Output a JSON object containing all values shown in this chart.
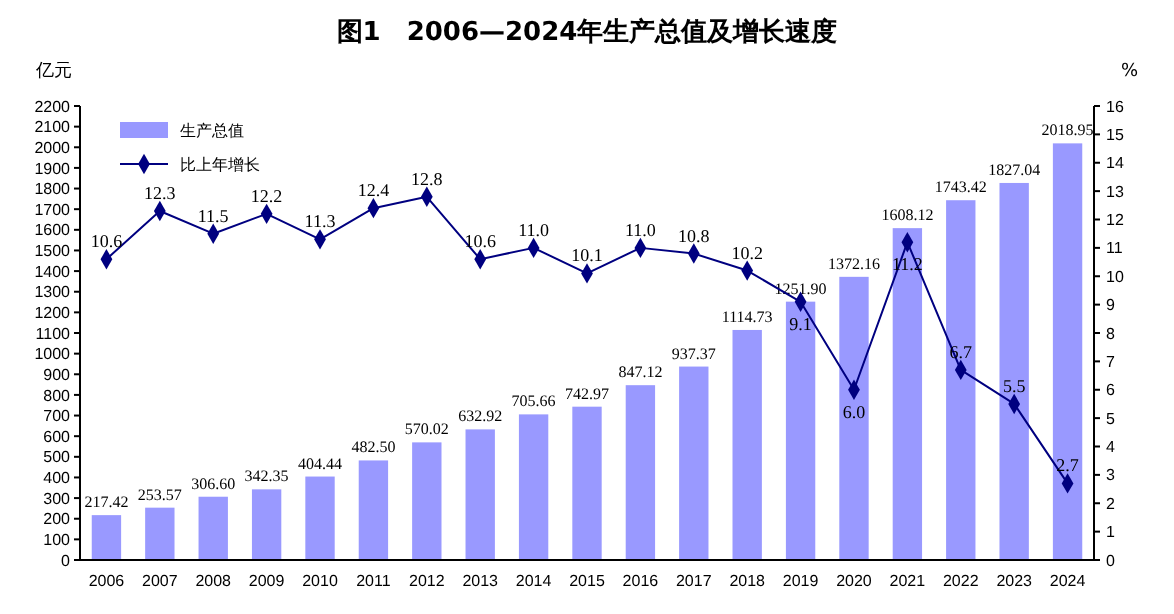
{
  "chart_data": {
    "type": "bar",
    "title": "图1　2006—2024年生产总值及增长速度",
    "ylabel": "亿元",
    "y2label": "%",
    "categories": [
      "2006",
      "2007",
      "2008",
      "2009",
      "2010",
      "2011",
      "2012",
      "2013",
      "2014",
      "2015",
      "2016",
      "2017",
      "2018",
      "2019",
      "2020",
      "2021",
      "2022",
      "2023",
      "2024"
    ],
    "series": [
      {
        "name": "生产总值",
        "color": "#9999ff",
        "values": [
          217.42,
          253.57,
          306.6,
          342.35,
          404.44,
          482.5,
          570.02,
          632.92,
          705.66,
          742.97,
          847.12,
          937.37,
          1114.73,
          1251.9,
          1372.16,
          1608.12,
          1743.42,
          1827.04,
          2018.95
        ],
        "value_labels": [
          "217.42",
          "253.57",
          "306.60",
          "342.35",
          "404.44",
          "482.50",
          "570.02",
          "632.92",
          "705.66",
          "742.97",
          "847.12",
          "937.37",
          "1114.73",
          "1251.90",
          "1372.16",
          "1608.12",
          "1743.42",
          "1827.04",
          "2018.95"
        ]
      },
      {
        "name": "比上年增长",
        "type": "line",
        "axis": "y2",
        "color": "#000080",
        "marker": "diamond",
        "values": [
          10.6,
          12.3,
          11.5,
          12.2,
          11.3,
          12.4,
          12.8,
          10.6,
          11.0,
          10.1,
          11.0,
          10.8,
          10.2,
          9.1,
          6.0,
          11.2,
          6.7,
          5.5,
          2.7
        ],
        "value_labels": [
          "10.6",
          "12.3",
          "11.5",
          "12.2",
          "11.3",
          "12.4",
          "12.8",
          "10.6",
          "11.0",
          "10.1",
          "11.0",
          "10.8",
          "10.2",
          "9.1",
          "6.0",
          "11.2",
          "6.7",
          "5.5",
          "2.7"
        ]
      }
    ],
    "ylim": [
      0,
      2200
    ],
    "yticks": [
      0,
      100,
      200,
      300,
      400,
      500,
      600,
      700,
      800,
      900,
      1000,
      1100,
      1200,
      1300,
      1400,
      1500,
      1600,
      1700,
      1800,
      1900,
      2000,
      2100,
      2200
    ],
    "y2lim": [
      0,
      16
    ],
    "y2ticks": [
      0,
      1,
      2,
      3,
      4,
      5,
      6,
      7,
      8,
      9,
      10,
      11,
      12,
      13,
      14,
      15,
      16
    ],
    "legend": "top left",
    "grid": false
  }
}
